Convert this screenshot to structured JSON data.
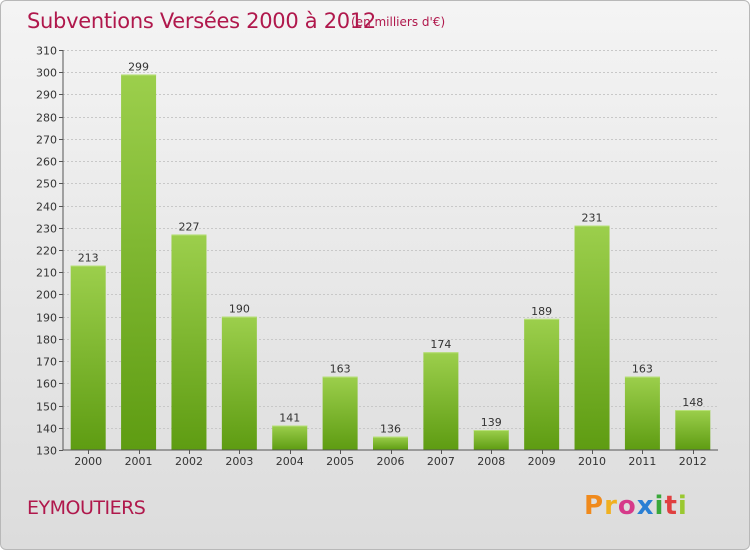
{
  "header": {
    "title": "Subventions Versées 2000 à 2012",
    "subtitle": "(en milliers d'€)"
  },
  "footer": {
    "commune": "EYMOUTIERS",
    "logo_text": "Proxiti"
  },
  "colors": {
    "title": "#b0184c",
    "bar_top": "#9ccf4c",
    "bar_bottom": "#5e9c12",
    "grid": "#c8c8c8"
  },
  "chart_data": {
    "type": "bar",
    "title": "Subventions Versées 2000 à 2012",
    "subtitle": "(en milliers d'€)",
    "categories": [
      "2000",
      "2001",
      "2002",
      "2003",
      "2004",
      "2005",
      "2006",
      "2007",
      "2008",
      "2009",
      "2010",
      "2011",
      "2012"
    ],
    "values": [
      213,
      299,
      227,
      190,
      141,
      163,
      136,
      174,
      139,
      189,
      231,
      163,
      148
    ],
    "ylim": [
      130,
      310
    ],
    "ytick_step": 10,
    "grid": true,
    "data_labels": true
  }
}
